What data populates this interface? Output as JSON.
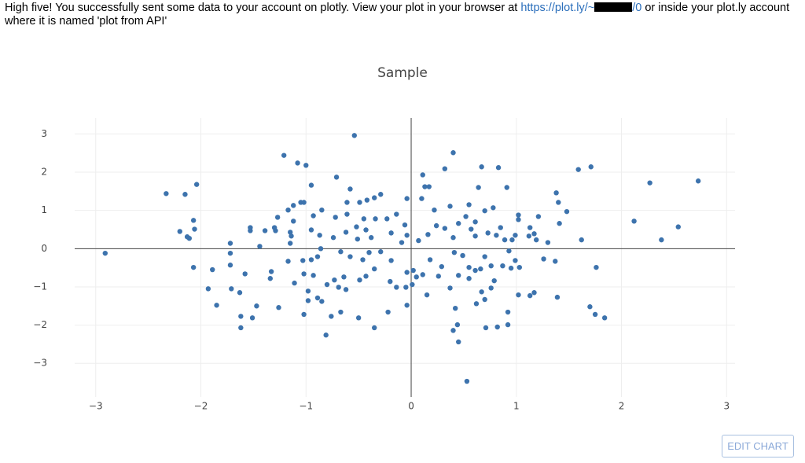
{
  "message": {
    "before": "High five! You successfully sent some data to your account on plotly. View your plot in your browser at ",
    "link_start": "https://plot.ly/~",
    "link_end": "/0",
    "after": " or inside your plot.ly account where it is named 'plot from API'"
  },
  "button": "EDIT CHART",
  "chart_data": {
    "type": "scatter",
    "title": "Sample",
    "color": "#3d73ad",
    "grid": true,
    "zeroline": true,
    "xlim": [
      -3.2,
      3.08
    ],
    "ylim": [
      -3.88,
      3.42
    ],
    "xticks": [
      {
        "value": -3,
        "label": "−3"
      },
      {
        "value": -2,
        "label": "−2"
      },
      {
        "value": -1,
        "label": "−1"
      },
      0,
      1,
      2,
      3
    ],
    "yticks": [
      {
        "value": -3,
        "label": "−3"
      },
      {
        "value": -2,
        "label": "−2"
      },
      {
        "value": -1,
        "label": "−1"
      },
      0,
      1,
      2,
      3
    ],
    "x": [
      -2.91,
      -2.33,
      -2.15,
      -2.04,
      -2.13,
      -2.11,
      -2.07,
      -2.06,
      -2.2,
      -2.07,
      -1.89,
      -1.93,
      -1.85,
      -1.72,
      -1.72,
      -1.72,
      -1.71,
      -1.63,
      -1.62,
      -1.62,
      -1.58,
      -1.53,
      -1.53,
      -1.51,
      -1.47,
      -1.44,
      -1.39,
      -1.34,
      -1.33,
      -1.3,
      -1.29,
      -1.26,
      -1.21,
      -1.08,
      -1.0,
      -0.95,
      -0.71,
      -0.54,
      -0.58,
      -0.35,
      0.4,
      0.32,
      0.11,
      0.67,
      0.83,
      0.64,
      0.91,
      1.38,
      1.4,
      1.48,
      1.59,
      1.71,
      1.62,
      1.76,
      1.7,
      1.75,
      1.84,
      2.12,
      2.27,
      2.38,
      2.54,
      2.73,
      0.53,
      0.45,
      0.44,
      0.4,
      0.42,
      0.37,
      0.71,
      0.82,
      0.92,
      0.92,
      0.62,
      0.7,
      -1.02,
      -0.81,
      -0.76,
      -0.67,
      -0.5,
      -0.35,
      -0.22,
      -0.04,
      0.15,
      1.02,
      1.13,
      1.17,
      1.39,
      1.37,
      1.26,
      1.19,
      1.21,
      1.13,
      1.02,
      1.02,
      0.78,
      0.55,
      0.37,
      0.22,
      0.1,
      -0.04,
      0.17,
      0.13,
      -0.29,
      -0.42,
      -0.49,
      -0.61,
      -0.61,
      -1.12,
      -1.05,
      -1.02,
      -1.17,
      -1.27,
      -1.12,
      -0.93,
      -0.85,
      -1.15,
      -1.14,
      -1.15,
      -0.95,
      -0.87,
      -0.74,
      -0.72,
      -0.62,
      -0.51,
      -1.11,
      -0.98,
      -0.98,
      -0.89,
      -0.85,
      -0.8,
      -0.73,
      -0.69,
      -0.62,
      -0.64,
      -0.49,
      -0.43,
      -0.35,
      -0.2,
      -0.14,
      -0.05,
      0.01,
      0.02,
      0.11,
      0.18,
      0.29,
      0.41,
      0.49,
      0.55,
      0.61,
      0.66,
      0.76,
      0.87,
      0.95,
      1.03,
      0.99,
      0.93,
      0.7,
      0.79,
      0.76,
      0.67,
      0.55,
      0.45,
      0.26,
      0.05,
      -0.04,
      -0.19,
      -0.29,
      -0.4,
      -0.46,
      -0.58,
      -0.67,
      -0.89,
      -0.86,
      -0.95,
      -1.02,
      -0.93,
      -1.03,
      -1.17,
      -0.23,
      -0.14,
      -0.06,
      -0.04,
      -0.09,
      0.07,
      0.16,
      0.24,
      0.32,
      0.4,
      0.45,
      0.57,
      0.61,
      0.73,
      0.81,
      0.89,
      0.96,
      0.52,
      0.7,
      0.61,
      0.85,
      0.99,
      1.12,
      1.17,
      1.3,
      1.41,
      -0.19,
      -0.38,
      -0.43,
      -0.52,
      -0.34,
      -0.45
    ],
    "values": [
      -0.12,
      1.44,
      1.42,
      1.68,
      0.31,
      0.27,
      0.74,
      0.51,
      0.45,
      -0.49,
      -0.55,
      -1.05,
      -1.48,
      0.14,
      -0.12,
      -0.43,
      -1.05,
      -1.15,
      -1.77,
      -2.07,
      -0.66,
      0.55,
      0.47,
      -1.81,
      -1.5,
      0.06,
      0.47,
      -0.78,
      -0.6,
      0.55,
      0.47,
      -1.54,
      2.44,
      2.24,
      2.18,
      1.66,
      1.87,
      2.96,
      1.56,
      1.33,
      2.51,
      2.09,
      1.93,
      2.14,
      2.12,
      1.6,
      1.6,
      1.46,
      1.21,
      0.97,
      2.07,
      2.14,
      0.23,
      -0.49,
      -1.52,
      -1.72,
      -1.81,
      0.72,
      1.72,
      0.23,
      0.57,
      1.77,
      -3.47,
      -2.44,
      -1.99,
      -2.14,
      -1.56,
      -1.03,
      -2.07,
      -2.05,
      -1.99,
      -1.66,
      -1.44,
      -1.33,
      -1.72,
      -2.26,
      -1.77,
      -1.66,
      -1.81,
      -2.07,
      -1.66,
      -1.48,
      -1.21,
      -1.21,
      -1.23,
      -1.15,
      -1.27,
      -0.33,
      -0.27,
      0.23,
      0.84,
      0.55,
      0.76,
      0.88,
      1.07,
      1.15,
      1.11,
      1.01,
      1.31,
      1.31,
      1.62,
      1.62,
      1.42,
      1.27,
      1.21,
      0.9,
      1.21,
      1.13,
      1.21,
      1.21,
      1.01,
      0.82,
      0.72,
      0.86,
      1.01,
      0.43,
      0.33,
      0.14,
      0.49,
      0.35,
      0.29,
      0.82,
      0.43,
      0.25,
      -0.9,
      -1.36,
      -1.11,
      -1.29,
      -1.38,
      -0.94,
      -0.82,
      -1.01,
      -1.07,
      -0.74,
      -0.82,
      -0.72,
      -0.53,
      -0.86,
      -1.01,
      -1.01,
      -0.94,
      -0.57,
      -0.68,
      -0.29,
      -0.47,
      -0.1,
      -0.18,
      -0.49,
      -0.57,
      -0.53,
      -0.45,
      -0.45,
      -0.51,
      -0.49,
      -0.31,
      -0.06,
      -0.21,
      -0.84,
      -1.03,
      -1.13,
      -0.78,
      -0.7,
      -0.72,
      -0.74,
      -0.62,
      -0.31,
      -0.08,
      -0.1,
      -0.29,
      -0.21,
      -0.08,
      -0.21,
      0.0,
      -0.29,
      -0.66,
      -0.7,
      -0.31,
      -0.33,
      0.78,
      0.9,
      0.62,
      0.35,
      0.16,
      0.21,
      0.37,
      0.6,
      0.53,
      0.29,
      0.66,
      0.51,
      0.33,
      0.41,
      0.35,
      0.23,
      0.23,
      0.84,
      0.99,
      0.7,
      0.55,
      0.35,
      0.33,
      0.39,
      0.16,
      0.66,
      0.41,
      0.29,
      0.49,
      0.57,
      0.78,
      0.78
    ]
  }
}
